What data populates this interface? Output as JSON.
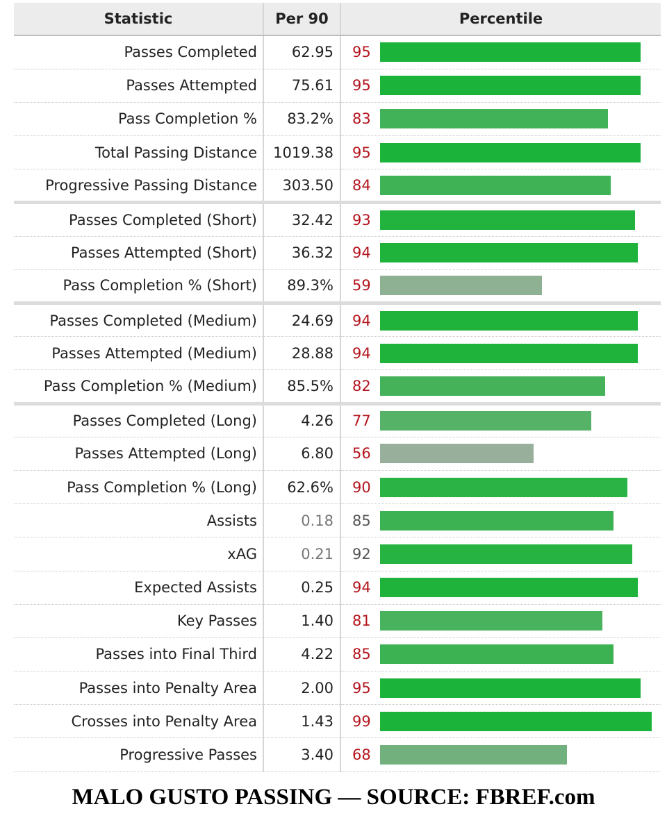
{
  "headers": {
    "statistic": "Statistic",
    "per90": "Per 90",
    "percentile": "Percentile"
  },
  "caption": "MALO GUSTO PASSING — SOURCE: FBREF.com",
  "colors": {
    "percentile_number": "#b4141e",
    "muted_number": "#555555",
    "bar_top": "#1cb33a",
    "bar_low": "#9bb09d"
  },
  "chart_data": {
    "type": "bar",
    "orientation": "horizontal",
    "xlim": [
      0,
      100
    ],
    "categories": [
      "Passes Completed",
      "Passes Attempted",
      "Pass Completion %",
      "Total Passing Distance",
      "Progressive Passing Distance",
      "Passes Completed (Short)",
      "Passes Attempted (Short)",
      "Pass Completion % (Short)",
      "Passes Completed (Medium)",
      "Passes Attempted (Medium)",
      "Pass Completion % (Medium)",
      "Passes Completed (Long)",
      "Passes Attempted (Long)",
      "Pass Completion % (Long)",
      "Assists",
      "xAG",
      "Expected Assists",
      "Key Passes",
      "Passes into Final Third",
      "Passes into Penalty Area",
      "Crosses into Penalty Area",
      "Progressive Passes"
    ],
    "rows": [
      {
        "stat": "Passes Completed",
        "per90": "62.95",
        "percentile": 95
      },
      {
        "stat": "Passes Attempted",
        "per90": "75.61",
        "percentile": 95
      },
      {
        "stat": "Pass Completion %",
        "per90": "83.2%",
        "percentile": 83
      },
      {
        "stat": "Total Passing Distance",
        "per90": "1019.38",
        "percentile": 95
      },
      {
        "stat": "Progressive Passing Distance",
        "per90": "303.50",
        "percentile": 84,
        "group_end": true
      },
      {
        "stat": "Passes Completed (Short)",
        "per90": "32.42",
        "percentile": 93
      },
      {
        "stat": "Passes Attempted (Short)",
        "per90": "36.32",
        "percentile": 94
      },
      {
        "stat": "Pass Completion % (Short)",
        "per90": "89.3%",
        "percentile": 59,
        "group_end": true
      },
      {
        "stat": "Passes Completed (Medium)",
        "per90": "24.69",
        "percentile": 94
      },
      {
        "stat": "Passes Attempted (Medium)",
        "per90": "28.88",
        "percentile": 94
      },
      {
        "stat": "Pass Completion % (Medium)",
        "per90": "85.5%",
        "percentile": 82,
        "group_end": true
      },
      {
        "stat": "Passes Completed (Long)",
        "per90": "4.26",
        "percentile": 77
      },
      {
        "stat": "Passes Attempted (Long)",
        "per90": "6.80",
        "percentile": 56
      },
      {
        "stat": "Pass Completion % (Long)",
        "per90": "62.6%",
        "percentile": 90
      },
      {
        "stat": "Assists",
        "per90": "0.18",
        "percentile": 85,
        "muted": true
      },
      {
        "stat": "xAG",
        "per90": "0.21",
        "percentile": 92,
        "muted": true
      },
      {
        "stat": "Expected Assists",
        "per90": "0.25",
        "percentile": 94
      },
      {
        "stat": "Key Passes",
        "per90": "1.40",
        "percentile": 81
      },
      {
        "stat": "Passes into Final Third",
        "per90": "4.22",
        "percentile": 85
      },
      {
        "stat": "Passes into Penalty Area",
        "per90": "2.00",
        "percentile": 95
      },
      {
        "stat": "Crosses into Penalty Area",
        "per90": "1.43",
        "percentile": 99
      },
      {
        "stat": "Progressive Passes",
        "per90": "3.40",
        "percentile": 68
      }
    ]
  }
}
